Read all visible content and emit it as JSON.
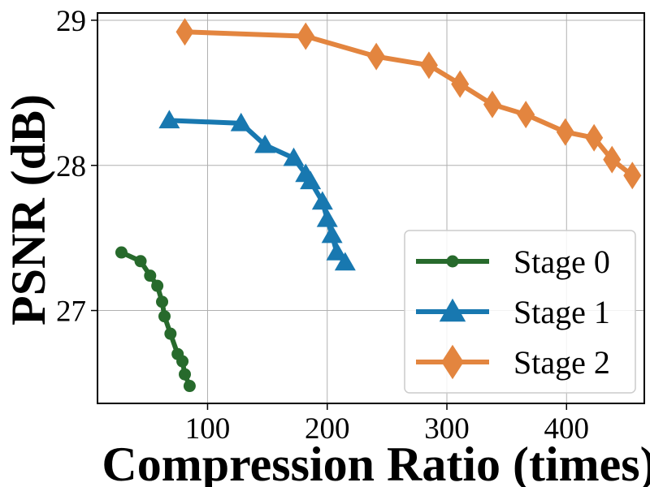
{
  "chart_data": {
    "type": "line",
    "title": "",
    "xlabel": "Compression Ratio (times)",
    "ylabel": "PSNR (dB)",
    "xlim": [
      8,
      465
    ],
    "ylim": [
      26.36,
      29.05
    ],
    "xticks": [
      100,
      200,
      300,
      400
    ],
    "yticks": [
      27,
      28,
      29
    ],
    "xtick_labels": [
      "100",
      "200",
      "300",
      "400"
    ],
    "ytick_labels": [
      "27",
      "28",
      "29"
    ],
    "grid": true,
    "legend_position": "lower-right",
    "series": [
      {
        "name": "Stage 0",
        "color": "#276a2c",
        "marker": "circle",
        "x": [
          28,
          44,
          52,
          58,
          62,
          64,
          69,
          75,
          79,
          81,
          85
        ],
        "y": [
          27.4,
          27.34,
          27.24,
          27.17,
          27.06,
          26.96,
          26.84,
          26.7,
          26.65,
          26.56,
          26.48
        ]
      },
      {
        "name": "Stage 1",
        "color": "#1878b0",
        "marker": "triangle",
        "x": [
          68,
          128,
          148,
          172,
          182,
          186,
          196,
          200,
          204,
          208,
          215
        ],
        "y": [
          28.31,
          28.29,
          28.14,
          28.05,
          27.94,
          27.89,
          27.75,
          27.63,
          27.52,
          27.4,
          27.33
        ]
      },
      {
        "name": "Stage 2",
        "color": "#e3853f",
        "marker": "diamond",
        "x": [
          81,
          182,
          241,
          285,
          311,
          338,
          366,
          399,
          423,
          438,
          455
        ],
        "y": [
          28.92,
          28.89,
          28.75,
          28.69,
          28.56,
          28.42,
          28.35,
          28.23,
          28.19,
          28.04,
          27.93
        ]
      }
    ]
  }
}
